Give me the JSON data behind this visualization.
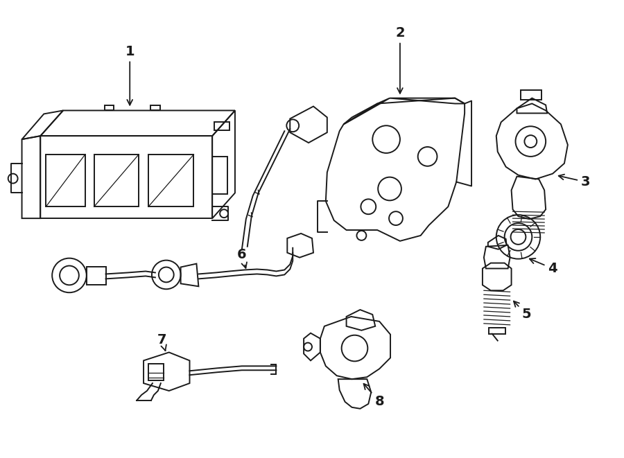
{
  "bg_color": "#ffffff",
  "line_color": "#1a1a1a",
  "label_fontsize": 14,
  "figsize": [
    9.0,
    6.61
  ],
  "dpi": 100
}
